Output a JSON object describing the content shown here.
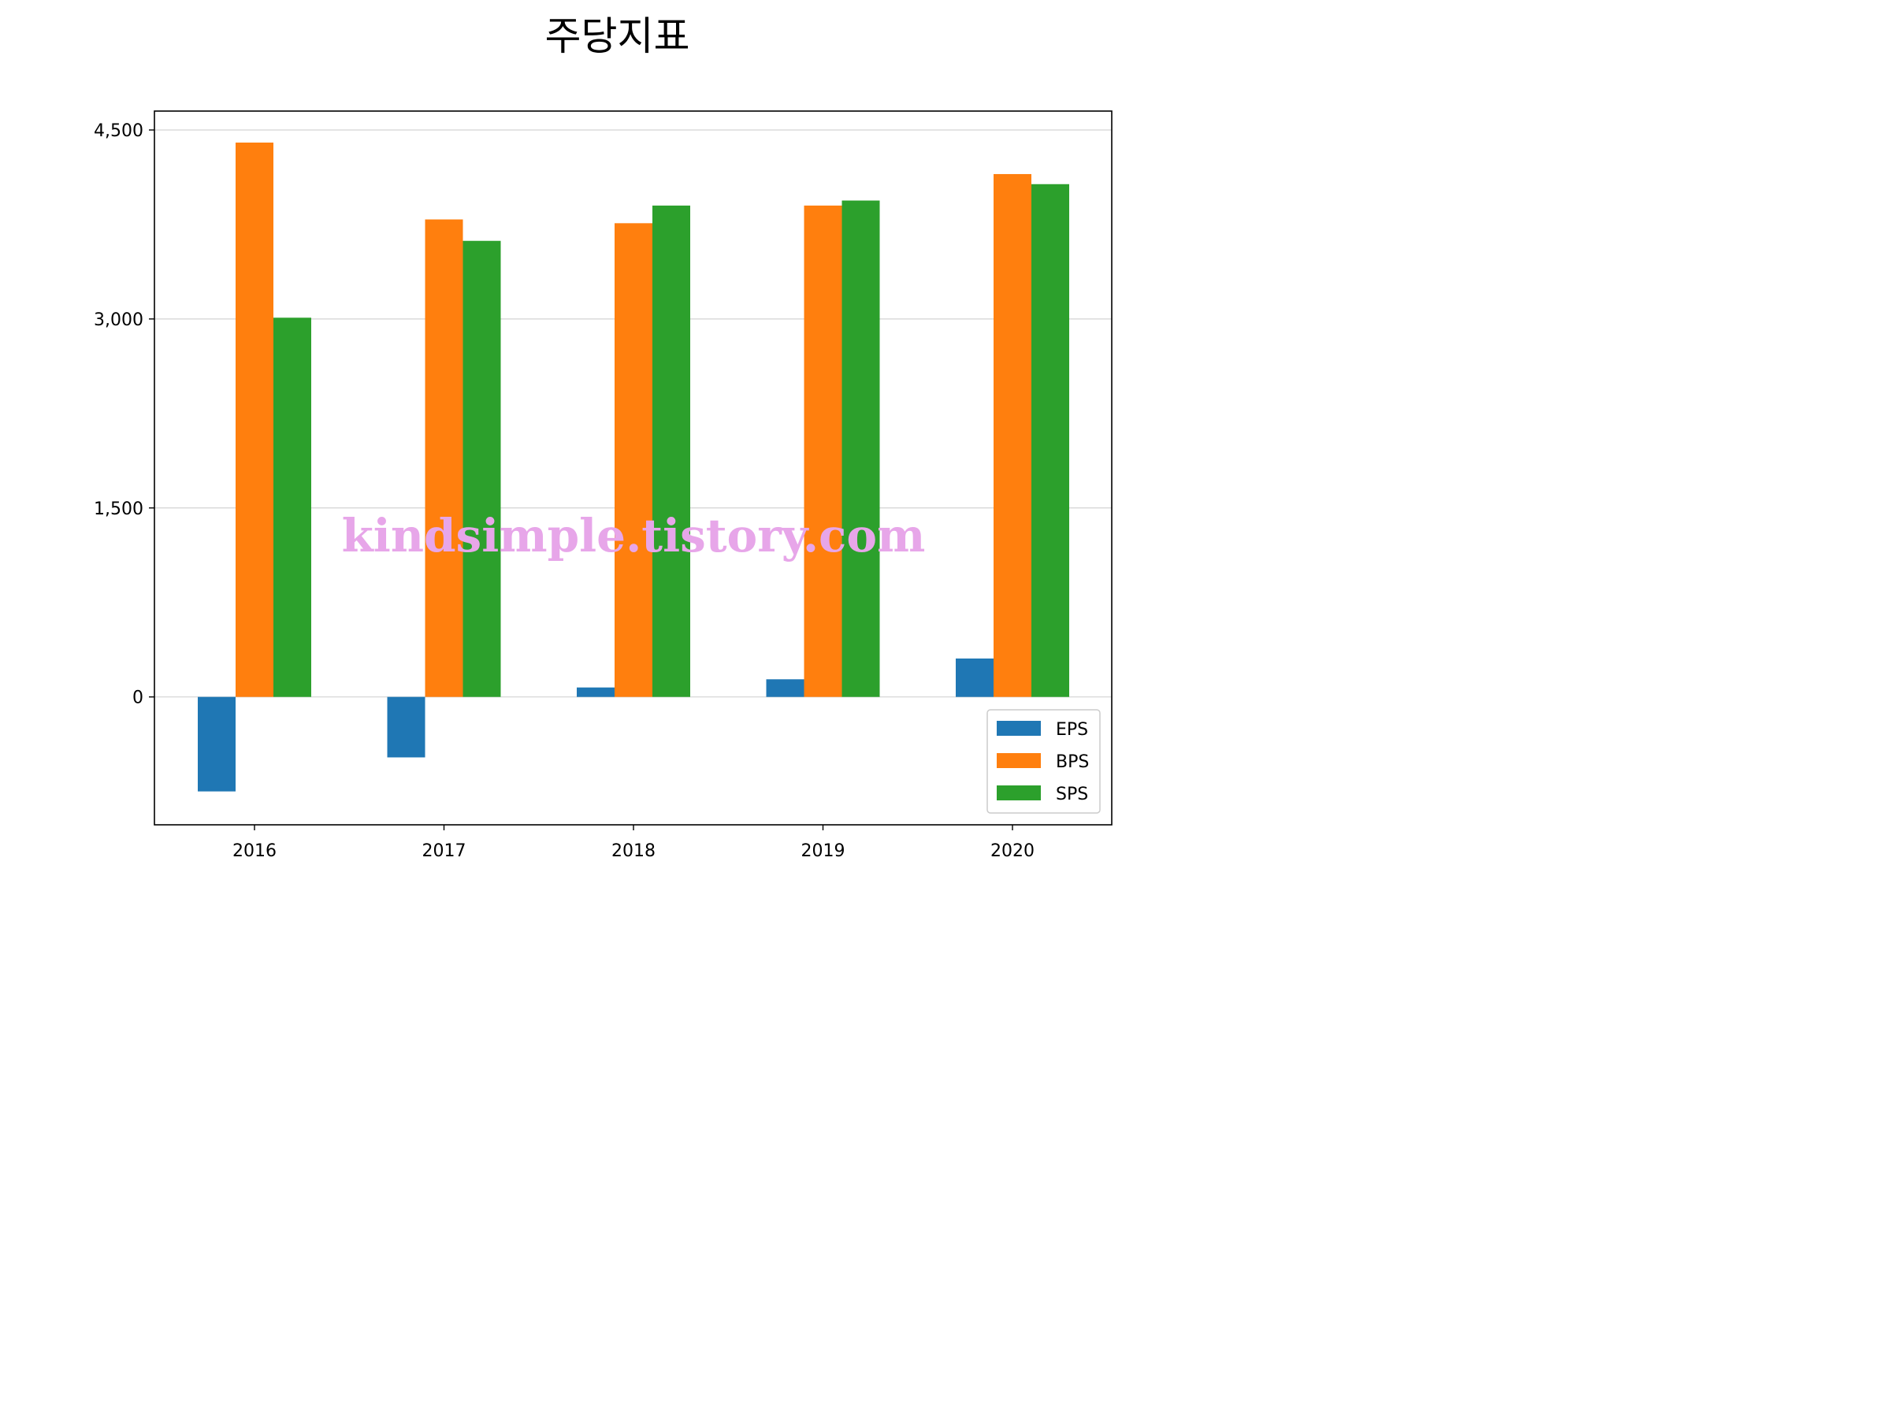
{
  "chart_data": {
    "type": "bar",
    "title": "주당지표",
    "xlabel": "",
    "ylabel": "",
    "categories": [
      "2016",
      "2017",
      "2018",
      "2019",
      "2020"
    ],
    "series": [
      {
        "name": "EPS",
        "color": "#1f77b4",
        "values": [
          -750,
          -480,
          75,
          140,
          305
        ]
      },
      {
        "name": "BPS",
        "color": "#ff7f0e",
        "values": [
          4400,
          3790,
          3760,
          3900,
          4150
        ]
      },
      {
        "name": "SPS",
        "color": "#2ca02c",
        "values": [
          3010,
          3620,
          3900,
          3940,
          4070
        ]
      }
    ],
    "yticks": [
      0,
      1500,
      3000,
      4500
    ],
    "ytick_labels": [
      "0",
      "1,500",
      "3,000",
      "4,500"
    ],
    "ylim": [
      -1015,
      4650
    ],
    "grid": "y",
    "legend": "lower-right",
    "watermark": "kindsimple.tistory.com"
  }
}
